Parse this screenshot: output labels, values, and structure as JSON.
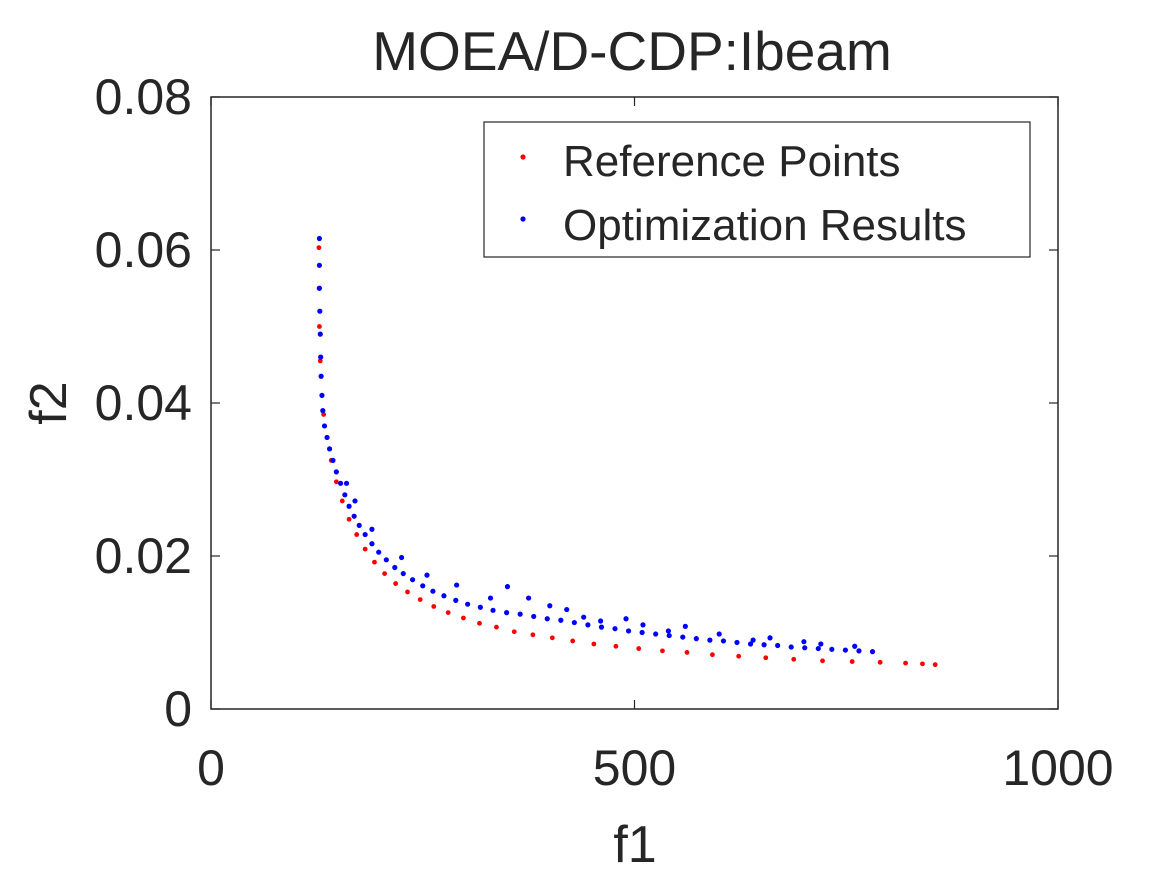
{
  "chart_data": {
    "type": "scatter",
    "title": "MOEA/D-CDP:Ibeam",
    "xlabel": "f1",
    "ylabel": "f2",
    "xlim": [
      0,
      1000
    ],
    "ylim": [
      0,
      0.08
    ],
    "xticks": [
      "0",
      "500",
      "1000"
    ],
    "yticks": [
      "0",
      "0.02",
      "0.04",
      "0.06",
      "0.08"
    ],
    "grid": false,
    "legend_position": "top-right",
    "legend": [
      "Reference Points",
      "Optimization Results"
    ],
    "colors": {
      "reference": "#ff0000",
      "results": "#0000ff",
      "axis": "#262626"
    },
    "series": [
      {
        "name": "Reference Points",
        "color": "#ff0000",
        "points": [
          [
            127.4,
            0.0603
          ],
          [
            127.6,
            0.055
          ],
          [
            128,
            0.05
          ],
          [
            129,
            0.0455
          ],
          [
            131,
            0.041
          ],
          [
            133,
            0.0385
          ],
          [
            137,
            0.0355
          ],
          [
            142,
            0.0325
          ],
          [
            148,
            0.0297
          ],
          [
            155,
            0.0272
          ],
          [
            163,
            0.0248
          ],
          [
            172,
            0.0228
          ],
          [
            182,
            0.0209
          ],
          [
            193,
            0.0192
          ],
          [
            205,
            0.0177
          ],
          [
            218,
            0.0164
          ],
          [
            232,
            0.0153
          ],
          [
            247,
            0.0143
          ],
          [
            263,
            0.0134
          ],
          [
            280,
            0.0126
          ],
          [
            298,
            0.0119
          ],
          [
            317,
            0.0112
          ],
          [
            337,
            0.0107
          ],
          [
            358,
            0.0101
          ],
          [
            380,
            0.0097
          ],
          [
            403,
            0.0093
          ],
          [
            427,
            0.0089
          ],
          [
            452,
            0.0085
          ],
          [
            478,
            0.0082
          ],
          [
            505,
            0.0079
          ],
          [
            533,
            0.0076
          ],
          [
            562,
            0.0074
          ],
          [
            592,
            0.0071
          ],
          [
            623,
            0.0069
          ],
          [
            655,
            0.0067
          ],
          [
            688,
            0.0065
          ],
          [
            722,
            0.0063
          ],
          [
            757,
            0.0062
          ],
          [
            790,
            0.0061
          ],
          [
            820,
            0.006
          ],
          [
            840,
            0.0059
          ],
          [
            855,
            0.0058
          ]
        ]
      },
      {
        "name": "Optimization Results",
        "color": "#0000ff",
        "points": [
          [
            128,
            0.0615
          ],
          [
            128,
            0.058
          ],
          [
            128,
            0.055
          ],
          [
            128.5,
            0.052
          ],
          [
            129,
            0.049
          ],
          [
            129.5,
            0.046
          ],
          [
            130,
            0.0435
          ],
          [
            131,
            0.041
          ],
          [
            132,
            0.039
          ],
          [
            134,
            0.037
          ],
          [
            137,
            0.0355
          ],
          [
            140,
            0.034
          ],
          [
            144,
            0.0325
          ],
          [
            148,
            0.031
          ],
          [
            153,
            0.0295
          ],
          [
            158,
            0.028
          ],
          [
            163,
            0.0265
          ],
          [
            169,
            0.0252
          ],
          [
            175,
            0.024
          ],
          [
            182,
            0.0228
          ],
          [
            190,
            0.0216
          ],
          [
            198,
            0.0205
          ],
          [
            207,
            0.0195
          ],
          [
            217,
            0.0185
          ],
          [
            227,
            0.0177
          ],
          [
            238,
            0.0169
          ],
          [
            250,
            0.0161
          ],
          [
            262,
            0.0154
          ],
          [
            275,
            0.0148
          ],
          [
            289,
            0.0142
          ],
          [
            303,
            0.0137
          ],
          [
            318,
            0.0133
          ],
          [
            333,
            0.0129
          ],
          [
            349,
            0.0126
          ],
          [
            365,
            0.0124
          ],
          [
            381,
            0.0121
          ],
          [
            397,
            0.0118
          ],
          [
            413,
            0.0116
          ],
          [
            429,
            0.0113
          ],
          [
            445,
            0.011
          ],
          [
            461,
            0.0107
          ],
          [
            477,
            0.0105
          ],
          [
            493,
            0.0102
          ],
          [
            509,
            0.01
          ],
          [
            525,
            0.0098
          ],
          [
            541,
            0.0096
          ],
          [
            557,
            0.0094
          ],
          [
            573,
            0.0092
          ],
          [
            589,
            0.009
          ],
          [
            605,
            0.0089
          ],
          [
            621,
            0.0087
          ],
          [
            637,
            0.0085
          ],
          [
            653,
            0.0084
          ],
          [
            669,
            0.0083
          ],
          [
            685,
            0.0081
          ],
          [
            701,
            0.008
          ],
          [
            717,
            0.0079
          ],
          [
            733,
            0.0078
          ],
          [
            749,
            0.0077
          ],
          [
            765,
            0.0076
          ],
          [
            781,
            0.0075
          ],
          [
            160,
            0.0295
          ],
          [
            170,
            0.0272
          ],
          [
            190,
            0.0235
          ],
          [
            225,
            0.0198
          ],
          [
            255,
            0.0175
          ],
          [
            290,
            0.0162
          ],
          [
            330,
            0.0145
          ],
          [
            350,
            0.016
          ],
          [
            375,
            0.0145
          ],
          [
            400,
            0.0135
          ],
          [
            420,
            0.013
          ],
          [
            440,
            0.012
          ],
          [
            460,
            0.0115
          ],
          [
            490,
            0.0118
          ],
          [
            510,
            0.011
          ],
          [
            540,
            0.0102
          ],
          [
            560,
            0.0108
          ],
          [
            600,
            0.0098
          ],
          [
            640,
            0.009
          ],
          [
            660,
            0.0093
          ],
          [
            700,
            0.0088
          ],
          [
            720,
            0.0085
          ],
          [
            760,
            0.0082
          ]
        ]
      }
    ]
  }
}
